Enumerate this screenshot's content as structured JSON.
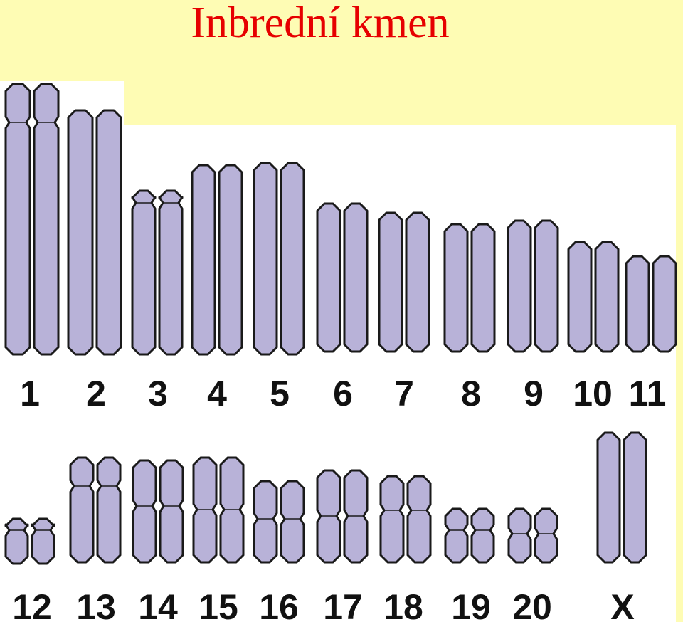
{
  "title": "Inbrední kmen",
  "colors": {
    "background": "#fefcb4",
    "chromosome_fill": "#b8b2d8",
    "chromosome_stroke": "#1a1a1a",
    "title": "#e60000"
  },
  "chromosomes": [
    {
      "label": "1",
      "has_centromere_notch": true
    },
    {
      "label": "2",
      "has_centromere_notch": false
    },
    {
      "label": "3",
      "has_centromere_notch": true
    },
    {
      "label": "4",
      "has_centromere_notch": false
    },
    {
      "label": "5",
      "has_centromere_notch": false
    },
    {
      "label": "6",
      "has_centromere_notch": false
    },
    {
      "label": "7",
      "has_centromere_notch": false
    },
    {
      "label": "8",
      "has_centromere_notch": false
    },
    {
      "label": "9",
      "has_centromere_notch": false
    },
    {
      "label": "10",
      "has_centromere_notch": false
    },
    {
      "label": "11",
      "has_centromere_notch": false
    },
    {
      "label": "12",
      "has_centromere_notch": true
    },
    {
      "label": "13",
      "has_centromere_notch": true
    },
    {
      "label": "14",
      "has_centromere_notch": true
    },
    {
      "label": "15",
      "has_centromere_notch": true
    },
    {
      "label": "16",
      "has_centromere_notch": true
    },
    {
      "label": "17",
      "has_centromere_notch": true
    },
    {
      "label": "18",
      "has_centromere_notch": true
    },
    {
      "label": "19",
      "has_centromere_notch": true
    },
    {
      "label": "20",
      "has_centromere_notch": true
    },
    {
      "label": "X",
      "has_centromere_notch": false
    }
  ]
}
